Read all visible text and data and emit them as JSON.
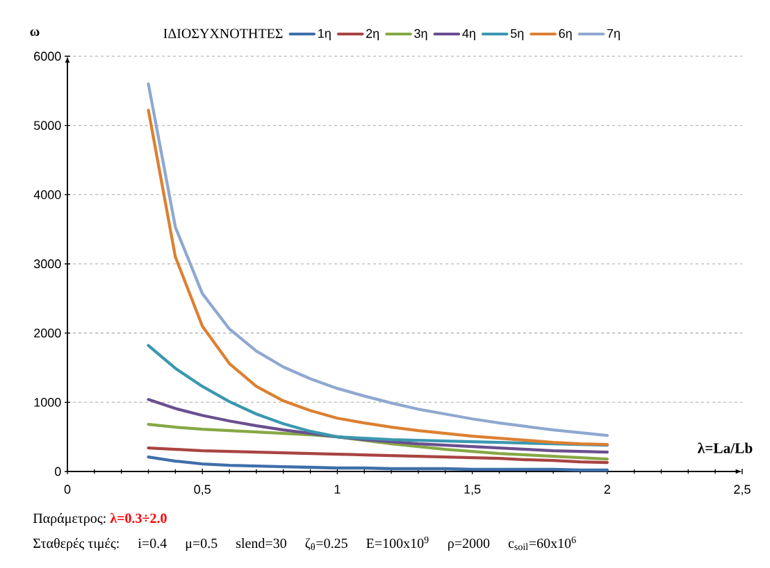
{
  "chart_data": {
    "type": "line",
    "xlabel": "λ=La/Lb",
    "ylabel": "ω",
    "legend_title": "ΙΔΙΟΣΥΧΝΟΤΗΤΕΣ",
    "x": [
      0.3,
      0.4,
      0.5,
      0.6,
      0.7,
      0.8,
      0.9,
      1.0,
      1.1,
      1.2,
      1.3,
      1.4,
      1.5,
      1.6,
      1.7,
      1.8,
      1.9,
      2.0
    ],
    "series": [
      {
        "name": "1η",
        "color": "#3f6faa",
        "values": [
          210,
          150,
          110,
          90,
          80,
          70,
          60,
          50,
          50,
          40,
          40,
          40,
          30,
          30,
          30,
          30,
          20,
          20
        ]
      },
      {
        "name": "2η",
        "color": "#a94442",
        "values": [
          340,
          320,
          300,
          290,
          280,
          270,
          260,
          250,
          240,
          230,
          220,
          210,
          200,
          190,
          170,
          160,
          140,
          130
        ]
      },
      {
        "name": "3η",
        "color": "#86a845",
        "values": [
          680,
          640,
          610,
          590,
          570,
          550,
          530,
          500,
          450,
          400,
          360,
          320,
          290,
          260,
          240,
          220,
          200,
          180
        ]
      },
      {
        "name": "4η",
        "color": "#6a4f8f",
        "values": [
          1040,
          910,
          810,
          730,
          660,
          600,
          550,
          500,
          460,
          430,
          400,
          380,
          360,
          340,
          320,
          300,
          290,
          280
        ]
      },
      {
        "name": "5η",
        "color": "#3a98b0",
        "values": [
          1820,
          1490,
          1230,
          1010,
          830,
          690,
          580,
          500,
          480,
          460,
          450,
          440,
          430,
          420,
          410,
          400,
          390,
          380
        ]
      },
      {
        "name": "6η",
        "color": "#dc8032",
        "values": [
          5220,
          3100,
          2100,
          1560,
          1230,
          1020,
          880,
          770,
          700,
          640,
          590,
          550,
          510,
          480,
          450,
          420,
          400,
          390
        ]
      },
      {
        "name": "7η",
        "color": "#8fa8d0",
        "values": [
          5600,
          3530,
          2570,
          2060,
          1740,
          1510,
          1340,
          1200,
          1090,
          990,
          900,
          830,
          760,
          700,
          650,
          600,
          560,
          520
        ]
      }
    ],
    "xlim": [
      0,
      2.5
    ],
    "xticks": [
      0,
      {
        "value": 0.5,
        "label": "0,5"
      },
      1,
      {
        "value": 1.5,
        "label": "1,5"
      },
      2,
      {
        "value": 2.5,
        "label": "2,5"
      }
    ],
    "ylim": [
      0,
      6000
    ],
    "yticks": [
      0,
      1000,
      2000,
      3000,
      4000,
      5000,
      6000
    ],
    "grid": "y",
    "legend": "top",
    "marker": "none",
    "line_style": "solid",
    "annotations": [
      "Παράμετρος:",
      "λ=0.3÷2.0",
      "Σταθερές τιμές:",
      "i=0.4",
      "μ=0.5",
      "slend=30",
      "ζ$_{θ}$=0.25",
      "E=100x10$^{9}$",
      "ρ=2000",
      "c$_{soil}$=60x10$^{6}$"
    ]
  }
}
